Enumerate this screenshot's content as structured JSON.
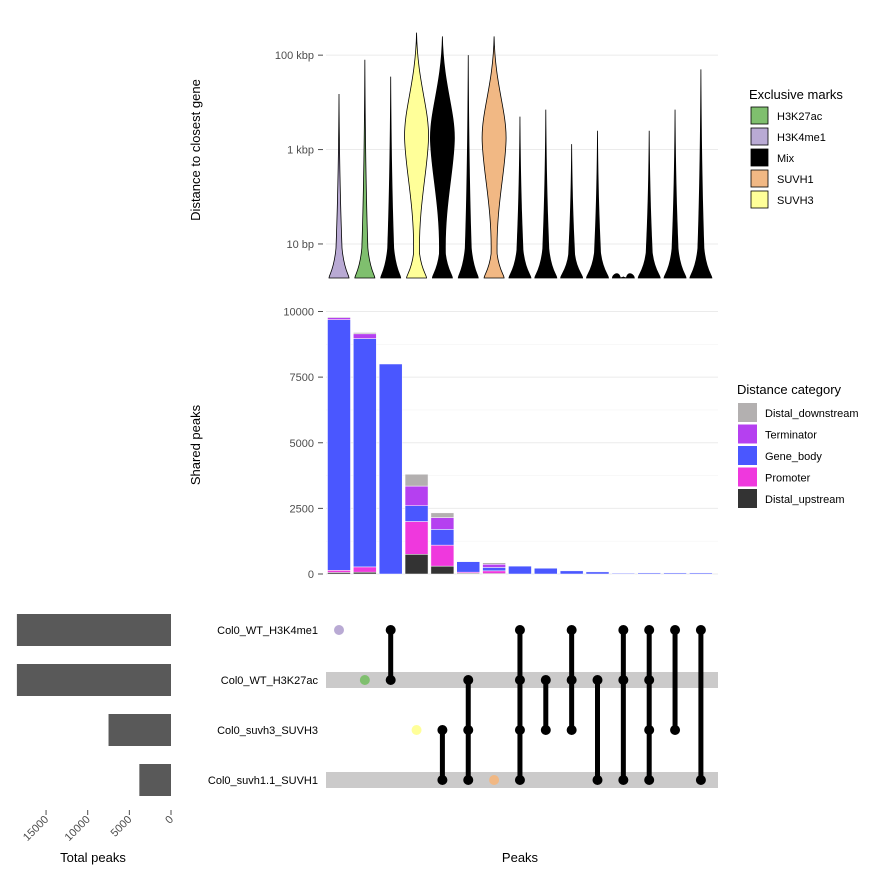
{
  "chart_data": [
    {
      "type": "violin",
      "panel": "distance",
      "ylabel": "Distance to closest gene",
      "y_scale": "log10",
      "y_ticks": [
        {
          "value": 10,
          "label": "10 bp"
        },
        {
          "value": 1000,
          "label": "1 kbp"
        },
        {
          "value": 100000,
          "label": "100 kbp"
        }
      ],
      "legend_title": "Exclusive marks",
      "legend": [
        {
          "label": "H3K27ac",
          "color": "#7fbf6e"
        },
        {
          "label": "H3K4me1",
          "color": "#b9aad4"
        },
        {
          "label": "Mix",
          "color": "#000000"
        },
        {
          "label": "SUVH1",
          "color": "#f1b884"
        },
        {
          "label": "SUVH3",
          "color": "#ffff99"
        }
      ],
      "violins": [
        {
          "mark": "H3K4me1",
          "color": "#b9aad4",
          "max": 15000
        },
        {
          "mark": "H3K27ac",
          "color": "#7fbf6e",
          "max": 80000
        },
        {
          "mark": "Mix",
          "color": "#000000",
          "max": 35000
        },
        {
          "mark": "SUVH3",
          "color": "#ffff99",
          "max": 300000
        },
        {
          "mark": "Mix",
          "color": "#000000",
          "max": 250000
        },
        {
          "mark": "Mix",
          "color": "#000000",
          "max": 100000
        },
        {
          "mark": "SUVH1",
          "color": "#f1b884",
          "max": 250000
        },
        {
          "mark": "Mix",
          "color": "#000000",
          "max": 5000
        },
        {
          "mark": "Mix",
          "color": "#000000",
          "max": 7000
        },
        {
          "mark": "Mix",
          "color": "#000000",
          "max": 1300
        },
        {
          "mark": "Mix",
          "color": "#000000",
          "max": 2500
        },
        {
          "mark": "Mix",
          "color": "#000000",
          "max": 2
        },
        {
          "mark": "Mix",
          "color": "#000000",
          "max": 2500
        },
        {
          "mark": "Mix",
          "color": "#000000",
          "max": 7000
        },
        {
          "mark": "Mix",
          "color": "#000000",
          "max": 50000
        }
      ]
    },
    {
      "type": "bar",
      "stacked": true,
      "panel": "intersections",
      "ylabel": "Shared peaks",
      "ylim": [
        0,
        10000
      ],
      "y_ticks": [
        0,
        2500,
        5000,
        7500,
        10000
      ],
      "legend_title": "Distance category",
      "legend": [
        {
          "label": "Distal_downstream",
          "color": "#b3b0b0"
        },
        {
          "label": "Terminator",
          "color": "#b540f0"
        },
        {
          "label": "Gene_body",
          "color": "#4a57ff"
        },
        {
          "label": "Promoter",
          "color": "#ef38dd"
        },
        {
          "label": "Distal_upstream",
          "color": "#333333"
        }
      ],
      "stack_order": [
        "Distal_upstream",
        "Promoter",
        "Gene_body",
        "Terminator",
        "Distal_downstream"
      ],
      "bars": [
        {
          "Distal_upstream": 60,
          "Promoter": 80,
          "Gene_body": 9550,
          "Terminator": 80,
          "Distal_downstream": 30
        },
        {
          "Distal_upstream": 70,
          "Promoter": 200,
          "Gene_body": 8700,
          "Terminator": 180,
          "Distal_downstream": 50
        },
        {
          "Distal_upstream": 0,
          "Promoter": 0,
          "Gene_body": 8000,
          "Terminator": 0,
          "Distal_downstream": 0
        },
        {
          "Distal_upstream": 750,
          "Promoter": 1250,
          "Gene_body": 600,
          "Terminator": 750,
          "Distal_downstream": 450
        },
        {
          "Distal_upstream": 300,
          "Promoter": 800,
          "Gene_body": 600,
          "Terminator": 450,
          "Distal_downstream": 180
        },
        {
          "Distal_upstream": 30,
          "Promoter": 40,
          "Gene_body": 400,
          "Terminator": 0,
          "Distal_downstream": 0
        },
        {
          "Distal_upstream": 20,
          "Promoter": 100,
          "Gene_body": 130,
          "Terminator": 120,
          "Distal_downstream": 60
        },
        {
          "Distal_upstream": 0,
          "Promoter": 0,
          "Gene_body": 300,
          "Terminator": 0,
          "Distal_downstream": 0
        },
        {
          "Distal_upstream": 0,
          "Promoter": 0,
          "Gene_body": 220,
          "Terminator": 0,
          "Distal_downstream": 0
        },
        {
          "Distal_upstream": 0,
          "Promoter": 0,
          "Gene_body": 120,
          "Terminator": 0,
          "Distal_downstream": 0
        },
        {
          "Distal_upstream": 0,
          "Promoter": 0,
          "Gene_body": 80,
          "Terminator": 0,
          "Distal_downstream": 0
        },
        {
          "Distal_upstream": 0,
          "Promoter": 0,
          "Gene_body": 30,
          "Terminator": 0,
          "Distal_downstream": 0
        },
        {
          "Distal_upstream": 0,
          "Promoter": 0,
          "Gene_body": 40,
          "Terminator": 0,
          "Distal_downstream": 0
        },
        {
          "Distal_upstream": 0,
          "Promoter": 0,
          "Gene_body": 40,
          "Terminator": 0,
          "Distal_downstream": 0
        },
        {
          "Distal_upstream": 0,
          "Promoter": 0,
          "Gene_body": 40,
          "Terminator": 0,
          "Distal_downstream": 0
        }
      ]
    },
    {
      "type": "bar",
      "orientation": "horizontal",
      "panel": "set_sizes",
      "xlabel": "Total peaks",
      "x_reversed": true,
      "x_ticks": [
        15000,
        10000,
        5000,
        0
      ],
      "bar_color": "#595959",
      "sets": [
        "Col0_WT_H3K4me1",
        "Col0_WT_H3K27ac",
        "Col0_suvh3_SUVH3",
        "Col0_suvh1.1_SUVH1"
      ],
      "values": [
        18500,
        18500,
        7500,
        3800
      ]
    },
    {
      "type": "matrix",
      "panel": "intersection_matrix",
      "xlabel": "Peaks",
      "sets": [
        "Col0_WT_H3K4me1",
        "Col0_WT_H3K27ac",
        "Col0_suvh3_SUVH3",
        "Col0_suvh1.1_SUVH1"
      ],
      "shaded_rows": [
        1,
        3
      ],
      "shade_color": "#cbcaca",
      "columns": [
        {
          "sets": [
            0
          ],
          "color": "#b9aad4"
        },
        {
          "sets": [
            1
          ],
          "color": "#7fbf6e"
        },
        {
          "sets": [
            0,
            1
          ],
          "color": "#000000"
        },
        {
          "sets": [
            2
          ],
          "color": "#ffff99"
        },
        {
          "sets": [
            2,
            3
          ],
          "color": "#000000"
        },
        {
          "sets": [
            1,
            2,
            3
          ],
          "color": "#000000"
        },
        {
          "sets": [
            3
          ],
          "color": "#f1b884"
        },
        {
          "sets": [
            0,
            1,
            2,
            3
          ],
          "color": "#000000"
        },
        {
          "sets": [
            1,
            2
          ],
          "color": "#000000"
        },
        {
          "sets": [
            0,
            1,
            2
          ],
          "color": "#000000"
        },
        {
          "sets": [
            1,
            3
          ],
          "color": "#000000"
        },
        {
          "sets": [
            0,
            1,
            3
          ],
          "color": "#000000"
        },
        {
          "sets": [
            0,
            1,
            2,
            3
          ],
          "color": "#000000"
        },
        {
          "sets": [
            0,
            2
          ],
          "color": "#000000"
        },
        {
          "sets": [
            0,
            3
          ],
          "color": "#000000"
        }
      ]
    }
  ]
}
